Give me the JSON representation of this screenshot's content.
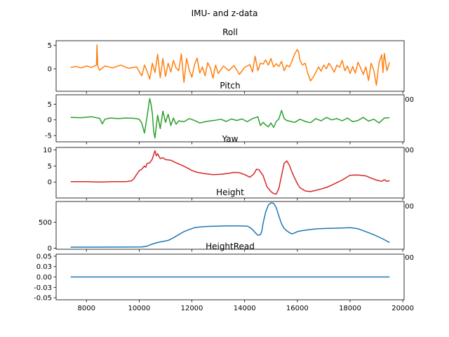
{
  "figure": {
    "suptitle": "IMU- and z-data"
  },
  "chart_data": [
    {
      "type": "line",
      "title": "Roll",
      "color": "#ff7f0e",
      "xlim": [
        6850,
        20050
      ],
      "ylim": [
        -4.8,
        6.0
      ],
      "xticks": [
        8000,
        10000,
        12000,
        14000,
        16000,
        18000,
        20000
      ],
      "yticks": [
        0,
        5
      ],
      "x": [
        7400,
        7600,
        7800,
        8000,
        8200,
        8380,
        8400,
        8430,
        8500,
        8700,
        9000,
        9300,
        9600,
        9900,
        10100,
        10200,
        10300,
        10400,
        10500,
        10600,
        10700,
        10800,
        10900,
        11000,
        11100,
        11200,
        11300,
        11400,
        11500,
        11600,
        11700,
        11800,
        11900,
        12000,
        12100,
        12200,
        12300,
        12400,
        12500,
        12600,
        12700,
        12800,
        12900,
        13000,
        13200,
        13400,
        13600,
        13800,
        14000,
        14200,
        14300,
        14400,
        14500,
        14600,
        14700,
        14800,
        14900,
        15000,
        15100,
        15200,
        15300,
        15400,
        15500,
        15600,
        15700,
        15800,
        15900,
        16000,
        16050,
        16100,
        16200,
        16300,
        16400,
        16500,
        16600,
        16700,
        16800,
        16900,
        17000,
        17100,
        17200,
        17300,
        17400,
        17500,
        17600,
        17700,
        17800,
        17900,
        18000,
        18100,
        18200,
        18300,
        18400,
        18500,
        18600,
        18700,
        18800,
        18900,
        19000,
        19100,
        19200,
        19250,
        19300,
        19400,
        19500
      ],
      "values": [
        0.3,
        0.5,
        0.2,
        0.6,
        0.3,
        0.8,
        5.1,
        0.5,
        -0.3,
        0.6,
        0.2,
        0.8,
        0.1,
        0.4,
        -1.5,
        0.8,
        -0.5,
        -2.2,
        1.2,
        -0.8,
        3.1,
        -1.9,
        2.2,
        -1.6,
        1.2,
        -0.7,
        1.8,
        0.2,
        -0.4,
        3.2,
        -2.9,
        2.2,
        -0.3,
        -1.8,
        0.9,
        2.3,
        -0.9,
        0.4,
        -1.5,
        1.3,
        0.2,
        -2.0,
        0.8,
        -1.0,
        0.6,
        -0.4,
        0.7,
        -1.2,
        0.3,
        0.9,
        -0.7,
        2.7,
        -0.4,
        1.2,
        1.0,
        1.9,
        0.8,
        2.2,
        0.4,
        1.1,
        0.5,
        1.6,
        -0.4,
        0.8,
        0.4,
        1.7,
        3.2,
        4.1,
        3.6,
        1.8,
        0.8,
        1.2,
        -1.0,
        -2.6,
        -1.8,
        -0.8,
        0.4,
        -0.5,
        0.8,
        0.0,
        1.2,
        0.3,
        -0.7,
        0.8,
        0.3,
        1.8,
        -0.4,
        0.6,
        -1.0,
        0.5,
        -0.9,
        1.4,
        0.2,
        -1.2,
        0.4,
        -2.5,
        1.2,
        -0.3,
        -3.5,
        1.3,
        3.0,
        -0.8,
        3.3,
        -0.4,
        1.4
      ]
    },
    {
      "type": "line",
      "title": "Pitch",
      "color": "#2ca02c",
      "xlim": [
        6850,
        20050
      ],
      "ylim": [
        -7.0,
        8.0
      ],
      "xticks": [
        8000,
        10000,
        12000,
        14000,
        16000,
        18000,
        20000
      ],
      "yticks": [
        -5,
        0,
        5
      ],
      "x": [
        7400,
        7800,
        8200,
        8500,
        8600,
        8700,
        8900,
        9200,
        9500,
        9800,
        10000,
        10100,
        10200,
        10300,
        10400,
        10450,
        10500,
        10550,
        10600,
        10650,
        10700,
        10800,
        10900,
        11000,
        11100,
        11200,
        11300,
        11400,
        11500,
        11700,
        11900,
        12100,
        12300,
        12500,
        12700,
        12900,
        13100,
        13300,
        13500,
        13700,
        13900,
        14100,
        14300,
        14500,
        14600,
        14700,
        14800,
        14900,
        15000,
        15100,
        15200,
        15300,
        15400,
        15500,
        15600,
        15700,
        15900,
        16100,
        16300,
        16500,
        16700,
        16900,
        17100,
        17300,
        17500,
        17700,
        17900,
        18100,
        18300,
        18500,
        18700,
        18900,
        19100,
        19300,
        19500
      ],
      "values": [
        0.8,
        0.7,
        1.0,
        0.5,
        -1.3,
        0.2,
        0.6,
        0.4,
        0.6,
        0.5,
        0.2,
        -1.0,
        -4.2,
        1.0,
        6.8,
        5.0,
        2.0,
        -3.5,
        -5.8,
        -2.0,
        1.5,
        -2.8,
        2.8,
        -0.8,
        1.8,
        -1.8,
        0.6,
        -1.4,
        -0.3,
        -0.6,
        0.4,
        -0.2,
        -1.0,
        -0.6,
        -0.3,
        -0.1,
        0.2,
        -0.5,
        0.3,
        -0.2,
        0.3,
        -0.6,
        0.4,
        1.0,
        -1.8,
        -0.8,
        -1.6,
        -2.2,
        -1.0,
        -2.4,
        -0.5,
        0.3,
        3.0,
        0.4,
        -0.2,
        -0.4,
        -0.8,
        0.2,
        -0.5,
        -0.9,
        0.4,
        -0.3,
        0.8,
        0.0,
        0.4,
        -0.3,
        0.6,
        -0.6,
        -0.2,
        0.8,
        -0.4,
        0.2,
        -1.0,
        0.6,
        0.7
      ]
    },
    {
      "type": "line",
      "title": "Yaw",
      "color": "#d62728",
      "xlim": [
        6850,
        20050
      ],
      "ylim": [
        -5.0,
        10.8
      ],
      "xticks": [
        8000,
        10000,
        12000,
        14000,
        16000,
        18000,
        20000
      ],
      "yticks": [
        0,
        5,
        10
      ],
      "x": [
        7400,
        8000,
        8500,
        9000,
        9500,
        9700,
        9800,
        9900,
        10000,
        10100,
        10200,
        10250,
        10300,
        10400,
        10500,
        10550,
        10600,
        10650,
        10700,
        10800,
        10900,
        11000,
        11200,
        11400,
        11600,
        11800,
        12000,
        12200,
        12500,
        12800,
        13100,
        13400,
        13600,
        13800,
        14000,
        14200,
        14350,
        14450,
        14550,
        14700,
        14850,
        15000,
        15100,
        15200,
        15300,
        15400,
        15500,
        15600,
        15700,
        15800,
        15900,
        16000,
        16100,
        16300,
        16500,
        16700,
        16900,
        17100,
        17300,
        17500,
        17700,
        17900,
        18000,
        18200,
        18400,
        18600,
        18800,
        19000,
        19200,
        19300,
        19400,
        19500
      ],
      "values": [
        0.1,
        0.1,
        0.0,
        0.1,
        0.1,
        0.3,
        1.0,
        2.3,
        3.5,
        4.0,
        5.0,
        4.6,
        5.8,
        6.0,
        7.2,
        8.5,
        9.8,
        8.2,
        8.8,
        7.3,
        7.6,
        7.0,
        6.8,
        6.0,
        5.3,
        4.5,
        3.6,
        3.0,
        2.6,
        2.3,
        2.4,
        2.7,
        3.0,
        2.9,
        2.3,
        1.5,
        2.5,
        4.0,
        3.8,
        2.0,
        -1.5,
        -3.0,
        -3.6,
        -3.8,
        -2.0,
        2.0,
        5.8,
        6.6,
        5.2,
        3.0,
        1.2,
        -0.5,
        -1.8,
        -2.8,
        -3.0,
        -2.6,
        -2.2,
        -1.7,
        -1.0,
        -0.2,
        0.6,
        1.6,
        2.1,
        2.2,
        2.1,
        1.9,
        1.2,
        0.6,
        0.2,
        0.7,
        0.2,
        0.4
      ]
    },
    {
      "type": "line",
      "title": "Height",
      "color": "#1f77b4",
      "xlim": [
        6850,
        20050
      ],
      "ylim": [
        -20,
        900
      ],
      "xticks": [
        8000,
        10000,
        12000,
        14000,
        16000,
        18000,
        20000
      ],
      "yticks": [
        0,
        500
      ],
      "x": [
        7400,
        8500,
        9500,
        10100,
        10300,
        10500,
        10700,
        10900,
        11100,
        11300,
        11500,
        11700,
        11900,
        12100,
        12300,
        12600,
        12900,
        13200,
        13500,
        13800,
        14100,
        14200,
        14300,
        14400,
        14500,
        14600,
        14650,
        14700,
        14800,
        14900,
        15000,
        15100,
        15200,
        15300,
        15400,
        15500,
        15600,
        15700,
        15800,
        15900,
        16000,
        16200,
        16500,
        16800,
        17100,
        17400,
        17700,
        18000,
        18300,
        18600,
        18900,
        19200,
        19500
      ],
      "values": [
        20,
        20,
        22,
        25,
        40,
        80,
        110,
        130,
        150,
        200,
        260,
        320,
        360,
        395,
        410,
        420,
        422,
        428,
        430,
        430,
        425,
        400,
        360,
        300,
        250,
        260,
        320,
        480,
        700,
        830,
        875,
        865,
        780,
        620,
        470,
        380,
        335,
        300,
        275,
        295,
        320,
        340,
        360,
        375,
        380,
        385,
        390,
        395,
        375,
        320,
        260,
        190,
        110
      ]
    },
    {
      "type": "line",
      "title": "HeightRead",
      "color": "#1f77b4",
      "xlim": [
        6850,
        20050
      ],
      "ylim": [
        -0.055,
        0.055
      ],
      "xticks": [
        8000,
        10000,
        12000,
        14000,
        16000,
        18000,
        20000
      ],
      "yticks": [
        -0.05,
        -0.025,
        0.0,
        0.025,
        0.05
      ],
      "x": [
        7400,
        19500
      ],
      "values": [
        0.0,
        0.0
      ]
    }
  ]
}
